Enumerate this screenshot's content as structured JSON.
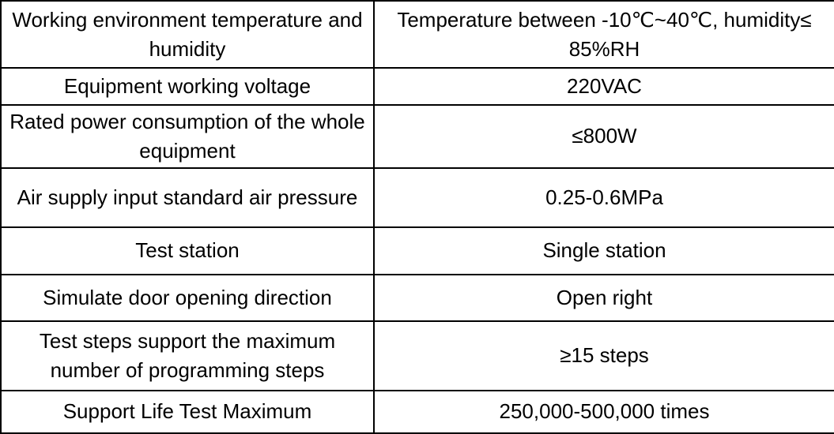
{
  "table": {
    "columns": [
      "parameter",
      "value"
    ],
    "rows": [
      {
        "parameter": "Working environment temperature and humidity",
        "value": "Temperature between -10℃~40℃, humidity≤ 85%RH"
      },
      {
        "parameter": "Equipment working voltage",
        "value": "220VAC"
      },
      {
        "parameter": "Rated power consumption of the whole equipment",
        "value": "≤800W"
      },
      {
        "parameter": "Air supply input standard air pressure",
        "value": "0.25-0.6MPa"
      },
      {
        "parameter": "Test station",
        "value": "Single station"
      },
      {
        "parameter": "Simulate door opening direction",
        "value": "Open right"
      },
      {
        "parameter": "Test steps support the maximum number of programming steps",
        "value": "≥15 steps"
      },
      {
        "parameter": "Support Life Test Maximum",
        "value": "250,000-500,000 times"
      }
    ]
  },
  "colors": {
    "border": "#000000",
    "text": "#000000",
    "background": "#ffffff"
  }
}
